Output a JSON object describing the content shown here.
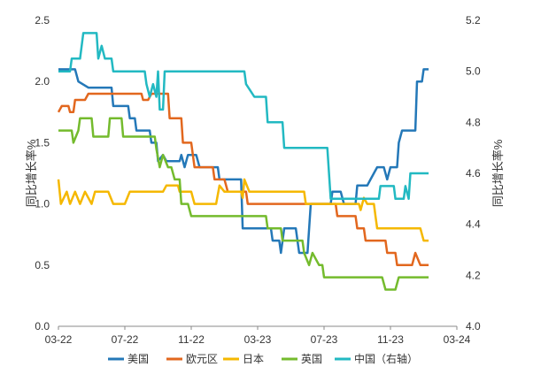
{
  "chart_data": {
    "type": "line",
    "x_ticks": [
      "03-22",
      "07-22",
      "11-22",
      "03-23",
      "07-23",
      "11-23",
      "03-24"
    ],
    "y_left": {
      "label": "同比增长率%",
      "ylim": [
        0.0,
        2.5
      ],
      "ticks": [
        "0.0",
        "0.5",
        "1.0",
        "1.5",
        "2.0",
        "2.5"
      ]
    },
    "y_right": {
      "label": "同比增长率%",
      "ylim": [
        4.0,
        5.2
      ],
      "ticks": [
        "4.0",
        "4.2",
        "4.4",
        "4.6",
        "4.8",
        "5.0",
        "5.2"
      ]
    },
    "legend_position": "bottom",
    "series": [
      {
        "name": "美国",
        "axis": "left",
        "color": "#2478b8",
        "points": [
          [
            0,
            2.1
          ],
          [
            1.0,
            2.1
          ],
          [
            1.2,
            2.0
          ],
          [
            1.8,
            1.95
          ],
          [
            2.0,
            1.95
          ],
          [
            3.2,
            1.95
          ],
          [
            3.3,
            1.8
          ],
          [
            4.2,
            1.8
          ],
          [
            4.3,
            1.7
          ],
          [
            4.6,
            1.7
          ],
          [
            4.7,
            1.6
          ],
          [
            5.5,
            1.6
          ],
          [
            5.6,
            1.5
          ],
          [
            5.9,
            1.5
          ],
          [
            6.0,
            1.35
          ],
          [
            6.3,
            1.4
          ],
          [
            6.5,
            1.35
          ],
          [
            7.3,
            1.35
          ],
          [
            7.4,
            1.4
          ],
          [
            7.6,
            1.3
          ],
          [
            7.8,
            1.4
          ],
          [
            8.3,
            1.4
          ],
          [
            8.5,
            1.3
          ],
          [
            9.6,
            1.3
          ],
          [
            9.7,
            1.2
          ],
          [
            11.0,
            1.2
          ],
          [
            11.1,
            0.8
          ],
          [
            12.8,
            0.8
          ],
          [
            12.9,
            0.7
          ],
          [
            13.3,
            0.7
          ],
          [
            13.4,
            0.6
          ],
          [
            13.6,
            0.8
          ],
          [
            14.3,
            0.8
          ],
          [
            14.5,
            0.6
          ],
          [
            15.0,
            0.6
          ],
          [
            15.2,
            1.0
          ],
          [
            16.4,
            1.0
          ],
          [
            16.5,
            1.1
          ],
          [
            17.0,
            1.1
          ],
          [
            17.2,
            1.0
          ],
          [
            17.9,
            1.0
          ],
          [
            18.0,
            1.15
          ],
          [
            18.6,
            1.15
          ],
          [
            18.8,
            1.2
          ],
          [
            19.2,
            1.3
          ],
          [
            19.6,
            1.3
          ],
          [
            19.8,
            1.2
          ],
          [
            20.0,
            1.3
          ],
          [
            20.4,
            1.3
          ],
          [
            20.5,
            1.5
          ],
          [
            20.7,
            1.6
          ],
          [
            21.0,
            1.6
          ],
          [
            21.2,
            1.6
          ],
          [
            21.5,
            1.6
          ],
          [
            21.6,
            2.0
          ],
          [
            21.9,
            2.0
          ],
          [
            22.0,
            2.1
          ],
          [
            22.3,
            2.1
          ]
        ]
      },
      {
        "name": "欧元区",
        "axis": "left",
        "color": "#e2671e",
        "points": [
          [
            0,
            1.75
          ],
          [
            0.2,
            1.8
          ],
          [
            0.6,
            1.8
          ],
          [
            0.7,
            1.75
          ],
          [
            0.9,
            1.75
          ],
          [
            1.0,
            1.85
          ],
          [
            1.6,
            1.85
          ],
          [
            1.8,
            1.9
          ],
          [
            5.0,
            1.9
          ],
          [
            5.1,
            1.85
          ],
          [
            5.4,
            1.85
          ],
          [
            5.6,
            1.9
          ],
          [
            6.6,
            1.9
          ],
          [
            6.7,
            1.7
          ],
          [
            7.4,
            1.7
          ],
          [
            7.5,
            1.5
          ],
          [
            8.0,
            1.5
          ],
          [
            8.2,
            1.3
          ],
          [
            9.3,
            1.3
          ],
          [
            9.4,
            1.2
          ],
          [
            10.0,
            1.2
          ],
          [
            10.2,
            1.1
          ],
          [
            11.3,
            1.1
          ],
          [
            11.4,
            1.0
          ],
          [
            16.7,
            1.0
          ],
          [
            16.8,
            0.9
          ],
          [
            17.9,
            0.9
          ],
          [
            18.0,
            0.8
          ],
          [
            18.4,
            0.8
          ],
          [
            18.5,
            0.7
          ],
          [
            19.7,
            0.7
          ],
          [
            19.8,
            0.6
          ],
          [
            20.3,
            0.6
          ],
          [
            20.4,
            0.5
          ],
          [
            21.3,
            0.5
          ],
          [
            21.5,
            0.6
          ],
          [
            21.8,
            0.5
          ],
          [
            22.3,
            0.5
          ]
        ]
      },
      {
        "name": "日本",
        "axis": "left",
        "color": "#f5b800",
        "points": [
          [
            0,
            1.2
          ],
          [
            0.15,
            1.0
          ],
          [
            0.5,
            1.1
          ],
          [
            0.7,
            1.0
          ],
          [
            1.0,
            1.1
          ],
          [
            1.3,
            1.0
          ],
          [
            1.6,
            1.1
          ],
          [
            2.0,
            1.0
          ],
          [
            2.2,
            1.1
          ],
          [
            3.0,
            1.1
          ],
          [
            3.3,
            1.0
          ],
          [
            4.0,
            1.0
          ],
          [
            4.3,
            1.1
          ],
          [
            6.3,
            1.1
          ],
          [
            6.5,
            1.15
          ],
          [
            7.2,
            1.15
          ],
          [
            7.3,
            1.1
          ],
          [
            8.0,
            1.1
          ],
          [
            8.2,
            1.0
          ],
          [
            9.5,
            1.0
          ],
          [
            9.7,
            1.15
          ],
          [
            10.0,
            1.1
          ],
          [
            11.0,
            1.1
          ],
          [
            11.1,
            1.05
          ],
          [
            11.2,
            1.2
          ],
          [
            11.5,
            1.1
          ],
          [
            14.8,
            1.1
          ],
          [
            14.9,
            1.0
          ],
          [
            18.1,
            1.0
          ],
          [
            18.2,
            0.95
          ],
          [
            18.4,
            1.05
          ],
          [
            18.6,
            1.0
          ],
          [
            19.0,
            1.0
          ],
          [
            19.1,
            0.9
          ],
          [
            19.2,
            0.8
          ],
          [
            21.8,
            0.8
          ],
          [
            22.0,
            0.7
          ],
          [
            22.3,
            0.7
          ]
        ]
      },
      {
        "name": "英国",
        "axis": "left",
        "color": "#74bb2d",
        "points": [
          [
            0,
            1.6
          ],
          [
            0.8,
            1.6
          ],
          [
            0.9,
            1.5
          ],
          [
            1.2,
            1.6
          ],
          [
            1.3,
            1.7
          ],
          [
            2.0,
            1.7
          ],
          [
            2.1,
            1.55
          ],
          [
            3.0,
            1.55
          ],
          [
            3.1,
            1.7
          ],
          [
            3.8,
            1.7
          ],
          [
            3.9,
            1.55
          ],
          [
            5.8,
            1.55
          ],
          [
            5.9,
            1.45
          ],
          [
            6.1,
            1.3
          ],
          [
            6.3,
            1.4
          ],
          [
            6.6,
            1.3
          ],
          [
            6.8,
            1.3
          ],
          [
            7.0,
            1.2
          ],
          [
            7.3,
            1.2
          ],
          [
            7.4,
            1.0
          ],
          [
            7.8,
            1.0
          ],
          [
            8.0,
            0.9
          ],
          [
            12.5,
            0.9
          ],
          [
            12.6,
            0.8
          ],
          [
            13.4,
            0.8
          ],
          [
            13.5,
            0.7
          ],
          [
            14.7,
            0.7
          ],
          [
            14.8,
            0.6
          ],
          [
            15.1,
            0.5
          ],
          [
            15.3,
            0.6
          ],
          [
            15.7,
            0.5
          ],
          [
            15.9,
            0.5
          ],
          [
            16.0,
            0.4
          ],
          [
            19.5,
            0.4
          ],
          [
            19.7,
            0.3
          ],
          [
            20.3,
            0.3
          ],
          [
            20.5,
            0.4
          ],
          [
            22.3,
            0.4
          ]
        ]
      },
      {
        "name": "中国（右轴）",
        "axis": "right",
        "color": "#22b9c2",
        "points": [
          [
            0,
            5.0
          ],
          [
            0.7,
            5.0
          ],
          [
            0.8,
            5.05
          ],
          [
            1.3,
            5.05
          ],
          [
            1.5,
            5.15
          ],
          [
            2.3,
            5.15
          ],
          [
            2.4,
            5.05
          ],
          [
            2.6,
            5.1
          ],
          [
            2.8,
            5.05
          ],
          [
            3.2,
            5.05
          ],
          [
            3.3,
            5.0
          ],
          [
            5.2,
            5.0
          ],
          [
            5.3,
            4.95
          ],
          [
            5.5,
            4.9
          ],
          [
            5.7,
            4.95
          ],
          [
            5.9,
            4.9
          ],
          [
            6.0,
            5.0
          ],
          [
            6.1,
            4.85
          ],
          [
            6.3,
            4.85
          ],
          [
            6.4,
            5.0
          ],
          [
            11.2,
            5.0
          ],
          [
            11.3,
            4.95
          ],
          [
            11.8,
            4.9
          ],
          [
            12.5,
            4.9
          ],
          [
            12.6,
            4.8
          ],
          [
            13.5,
            4.8
          ],
          [
            13.6,
            4.7
          ],
          [
            16.2,
            4.7
          ],
          [
            16.4,
            4.5
          ],
          [
            19.3,
            4.5
          ],
          [
            19.4,
            4.55
          ],
          [
            20.2,
            4.55
          ],
          [
            20.3,
            4.5
          ],
          [
            20.8,
            4.5
          ],
          [
            20.9,
            4.55
          ],
          [
            21.1,
            4.5
          ],
          [
            21.2,
            4.6
          ],
          [
            22.3,
            4.6
          ]
        ]
      }
    ]
  }
}
